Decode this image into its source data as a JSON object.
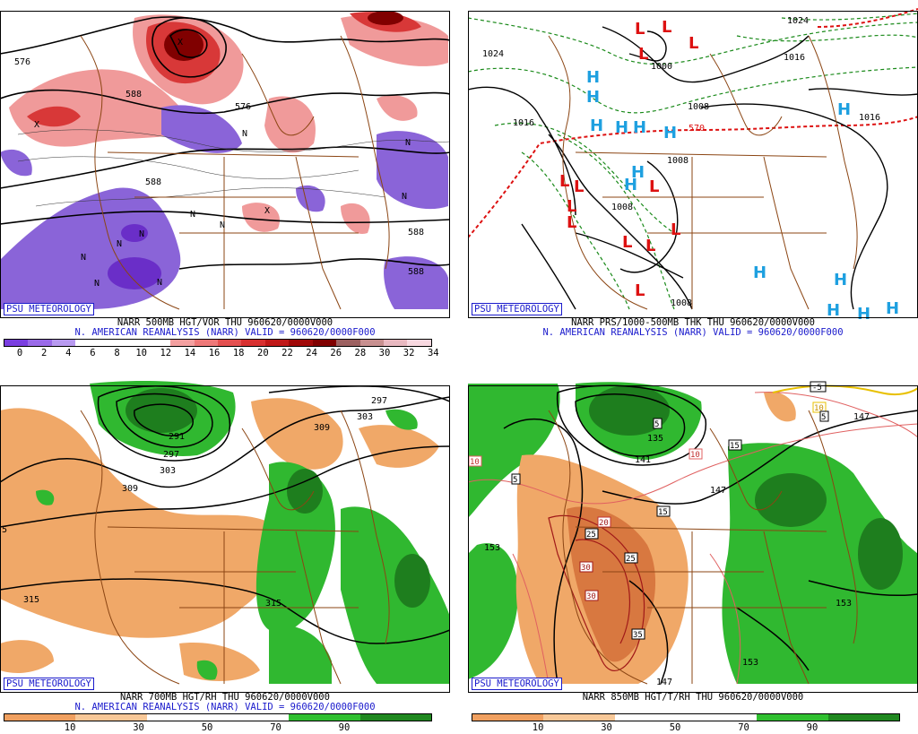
{
  "credit": "PSU METEOROLOGY",
  "panels": [
    {
      "id": "vorticity-500mb",
      "title_line1": "NARR 500MB HGT/VOR THU 960620/0000V000",
      "title_line2": "N. AMERICAN REANALYSIS (NARR) VALID = 960620/0000F000",
      "colorbar_ticks": [
        "0",
        "2",
        "4",
        "6",
        "8",
        "10",
        "12",
        "14",
        "16",
        "18",
        "20",
        "22",
        "24",
        "26",
        "28",
        "30",
        "32",
        "34"
      ],
      "colorbar_colors": [
        "#7a3ee0",
        "#9a6ae8",
        "#b89af0",
        "#ffffff",
        "#ffffff",
        "#ffffff",
        "#ffffff",
        "#f4a0a0",
        "#ee7878",
        "#e45050",
        "#d83030",
        "#c01818",
        "#a00808",
        "#800000",
        "#9c6060",
        "#c89090",
        "#e8b8c0",
        "#f8d8e0"
      ],
      "contour_labels": [
        "576",
        "588",
        "576",
        "588",
        "588",
        "588"
      ],
      "markers": [
        "N",
        "N",
        "N",
        "N",
        "N",
        "N",
        "N",
        "N",
        "N",
        "N",
        "X",
        "X",
        "X"
      ]
    },
    {
      "id": "pressure-thickness",
      "title_line1": "NARR PRS/1000-500MB THK THU 960620/0000V000",
      "title_line2": "N. AMERICAN REANALYSIS (NARR) VALID = 960620/0000F000",
      "contour_labels": [
        "1024",
        "1016",
        "1000",
        "1008",
        "1008",
        "1008",
        "1008",
        "1024",
        "1016",
        "1016",
        "570"
      ],
      "highs": [
        "H",
        "H",
        "H",
        "H",
        "H",
        "H",
        "H",
        "H",
        "H",
        "H",
        "H",
        "H",
        "H",
        "H"
      ],
      "lows": [
        "L",
        "L",
        "L",
        "L",
        "L",
        "L",
        "L",
        "L",
        "L",
        "L",
        "L",
        "L",
        "L"
      ]
    },
    {
      "id": "rh-700mb",
      "title_line1": "NARR 700MB HGT/RH THU 960620/0000V000",
      "title_line2": "N. AMERICAN REANALYSIS (NARR) VALID = 960620/0000F000",
      "colorbar_ticks": [
        "10",
        "30",
        "50",
        "70",
        "90"
      ],
      "colorbar_colors": [
        "#f0a060",
        "#f8c898",
        "#ffffff",
        "#ffffff",
        "#30c030",
        "#208820"
      ],
      "contour_labels": [
        "297",
        "291",
        "297",
        "303",
        "309",
        "309",
        "303",
        "315",
        "315",
        "5"
      ]
    },
    {
      "id": "temp-850mb",
      "title_line1": "NARR 850MB HGT/T/RH THU 960620/0000V000",
      "title_line2": "",
      "colorbar_ticks": [
        "10",
        "30",
        "50",
        "70",
        "90"
      ],
      "colorbar_colors": [
        "#f0a060",
        "#f8c898",
        "#ffffff",
        "#ffffff",
        "#30c030",
        "#208820"
      ],
      "contour_labels": [
        "135",
        "141",
        "147",
        "147",
        "153",
        "153",
        "153",
        "147"
      ],
      "temp_labels": [
        "-5",
        "10",
        "5",
        "5",
        "15",
        "10",
        "10",
        "5",
        "15",
        "20",
        "25",
        "25",
        "30",
        "30",
        "35"
      ]
    }
  ]
}
